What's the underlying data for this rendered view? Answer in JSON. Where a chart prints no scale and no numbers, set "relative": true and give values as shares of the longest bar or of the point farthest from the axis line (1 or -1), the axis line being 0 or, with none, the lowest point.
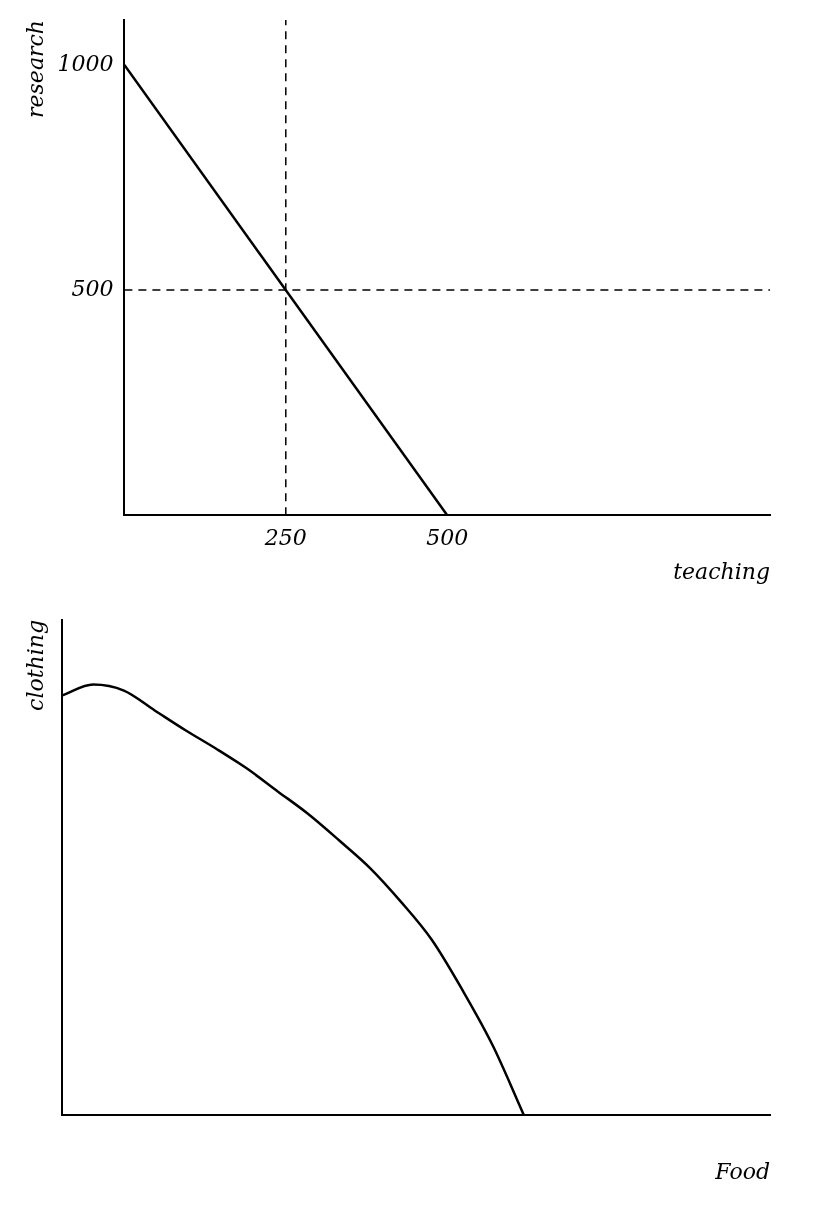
{
  "chart_data": [
    {
      "type": "line",
      "xlabel": "teaching",
      "ylabel": "research",
      "x": [
        0,
        500
      ],
      "values": [
        1000,
        0
      ],
      "color": "#000000",
      "xlim": [
        0,
        1000
      ],
      "ylim": [
        0,
        1100
      ],
      "xticks": [
        250,
        500
      ],
      "yticks": [
        500,
        1000
      ],
      "ref_lines": [
        {
          "axis": "x",
          "value": 250,
          "line_style": "dashed",
          "color": "#000000"
        },
        {
          "axis": "y",
          "value": 500,
          "line_style": "dashed",
          "color": "#000000"
        }
      ]
    },
    {
      "type": "line",
      "xlabel": "Food",
      "ylabel": "clothing",
      "relative": true,
      "color": "#000000",
      "categories": [
        null,
        null,
        null,
        null,
        null,
        null,
        null,
        null,
        null,
        null,
        null,
        null,
        null,
        null,
        null,
        null,
        null,
        null,
        null,
        null,
        null,
        null,
        null,
        null
      ],
      "values": [
        0.975,
        1,
        0.986,
        0.94,
        0.894,
        0.851,
        0.805,
        0.752,
        0.699,
        0.638,
        0.574,
        0.496,
        0.408,
        0.291,
        0.16,
        0,
        null,
        null,
        null,
        null,
        null,
        null,
        null,
        null
      ]
    }
  ]
}
